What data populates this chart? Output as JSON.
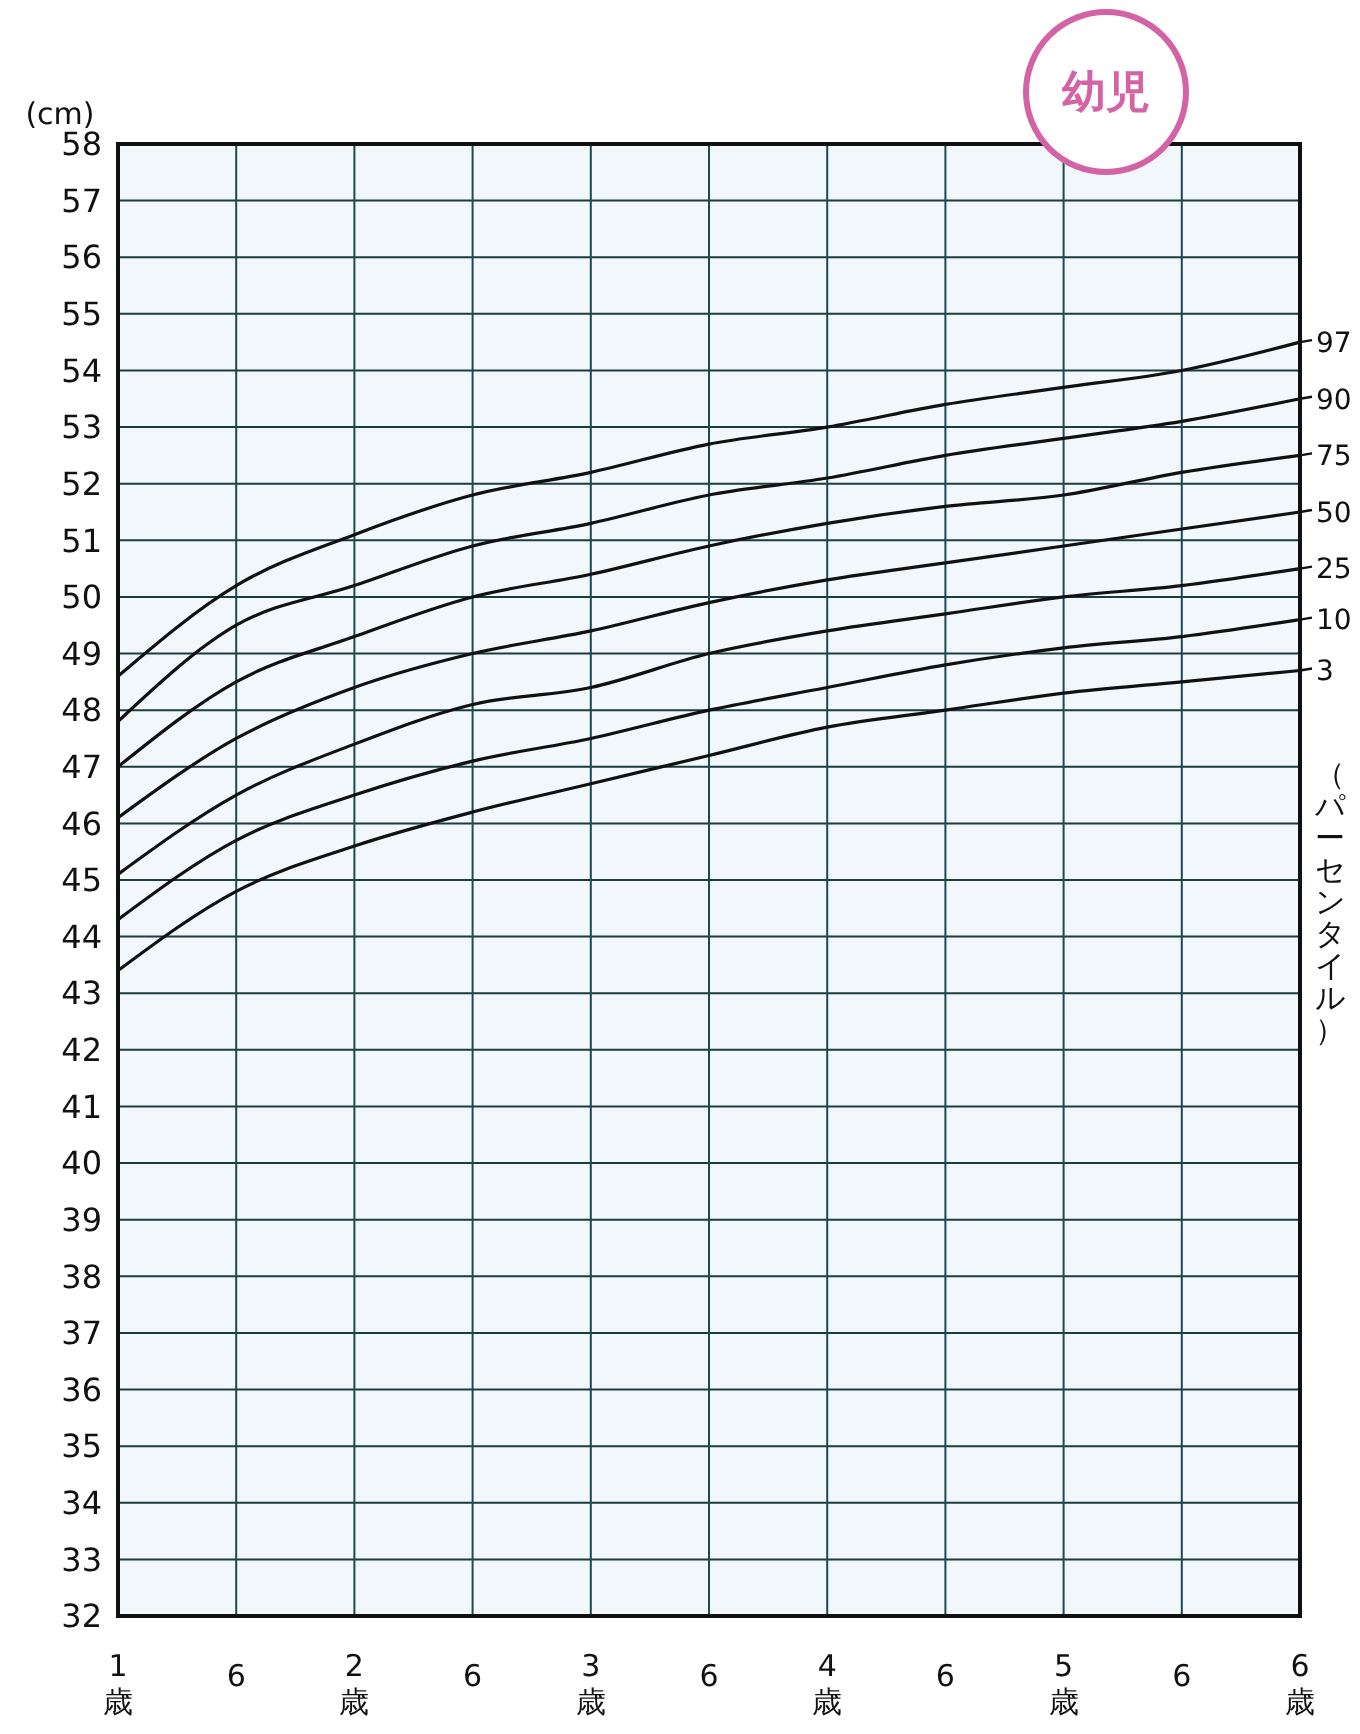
{
  "chart_data": {
    "type": "line",
    "title": "幼児",
    "ylabel": "(cm)",
    "legend_title": "（パーセンタイル）",
    "categories": [
      "1\n歳",
      "6",
      "2\n歳",
      "6",
      "3\n歳",
      "6",
      "4\n歳",
      "6",
      "5\n歳",
      "6",
      "6\n歳"
    ],
    "series": [
      {
        "name": "97",
        "color": "#111111",
        "values": [
          48.6,
          50.2,
          51.1,
          51.8,
          52.2,
          52.7,
          53.0,
          53.4,
          53.7,
          54.0,
          54.5
        ]
      },
      {
        "name": "90",
        "color": "#111111",
        "values": [
          47.8,
          49.5,
          50.2,
          50.9,
          51.3,
          51.8,
          52.1,
          52.5,
          52.8,
          53.1,
          53.5
        ]
      },
      {
        "name": "75",
        "color": "#111111",
        "values": [
          47.0,
          48.5,
          49.3,
          50.0,
          50.4,
          50.9,
          51.3,
          51.6,
          51.8,
          52.2,
          52.5
        ]
      },
      {
        "name": "50",
        "color": "#111111",
        "values": [
          46.1,
          47.5,
          48.4,
          49.0,
          49.4,
          49.9,
          50.3,
          50.6,
          50.9,
          51.2,
          51.5
        ]
      },
      {
        "name": "25",
        "color": "#111111",
        "values": [
          45.1,
          46.5,
          47.4,
          48.1,
          48.4,
          49.0,
          49.4,
          49.7,
          50.0,
          50.2,
          50.5
        ]
      },
      {
        "name": "10",
        "color": "#111111",
        "values": [
          44.3,
          45.7,
          46.5,
          47.1,
          47.5,
          48.0,
          48.4,
          48.8,
          49.1,
          49.3,
          49.6
        ]
      },
      {
        "name": "3",
        "color": "#111111",
        "values": [
          43.4,
          44.8,
          45.6,
          46.2,
          46.7,
          47.2,
          47.7,
          48.0,
          48.3,
          48.5,
          48.7
        ]
      }
    ],
    "ylim": [
      32,
      58
    ],
    "yticks": [
      32,
      33,
      34,
      35,
      36,
      37,
      38,
      39,
      40,
      41,
      42,
      43,
      44,
      45,
      46,
      47,
      48,
      49,
      50,
      51,
      52,
      53,
      54,
      55,
      56,
      57,
      58
    ],
    "grid": true,
    "legend": "right",
    "marker": "none",
    "line_style": "solid"
  }
}
